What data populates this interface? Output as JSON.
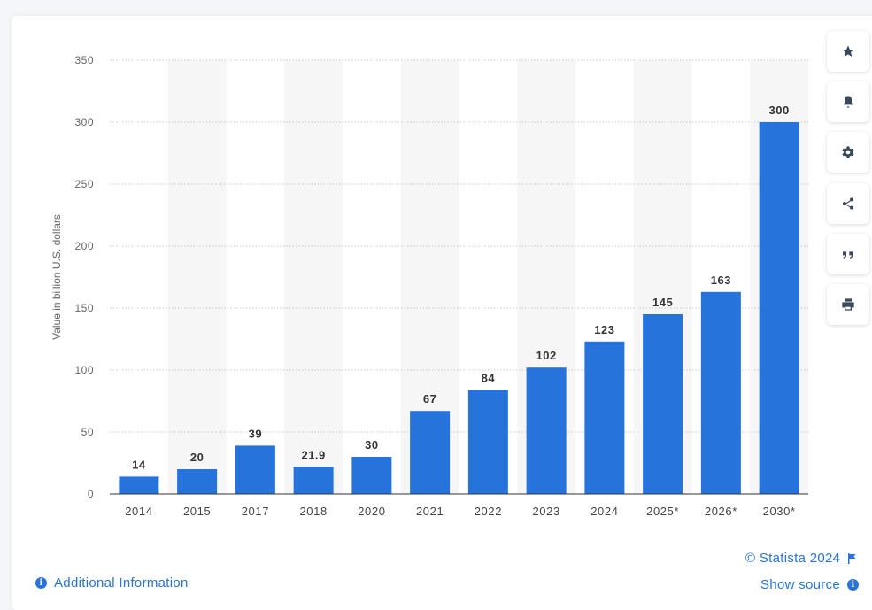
{
  "chart_data": {
    "type": "bar",
    "categories": [
      "2014",
      "2015",
      "2017",
      "2018",
      "2020",
      "2021",
      "2022",
      "2023",
      "2024",
      "2025*",
      "2026*",
      "2030*"
    ],
    "values": [
      14,
      20,
      39,
      21.9,
      30,
      67,
      84,
      102,
      123,
      145,
      163,
      300
    ],
    "value_labels": [
      "14",
      "20",
      "39",
      "21.9",
      "30",
      "67",
      "84",
      "102",
      "123",
      "145",
      "163",
      "300"
    ],
    "ylabel": "Value in billion U.S. dollars",
    "xlabel": "",
    "ylim": [
      0,
      350
    ],
    "yticks": [
      "0",
      "50",
      "100",
      "150",
      "200",
      "250",
      "300",
      "350"
    ],
    "grid": true,
    "bar_color": "#2673db"
  },
  "footer": {
    "copyright": "© Statista 2024",
    "additional_info": "Additional Information",
    "show_source": "Show source"
  },
  "sidebar_tools": [
    "star-icon",
    "bell-icon",
    "gear-icon",
    "share-icon",
    "quote-icon",
    "print-icon"
  ]
}
